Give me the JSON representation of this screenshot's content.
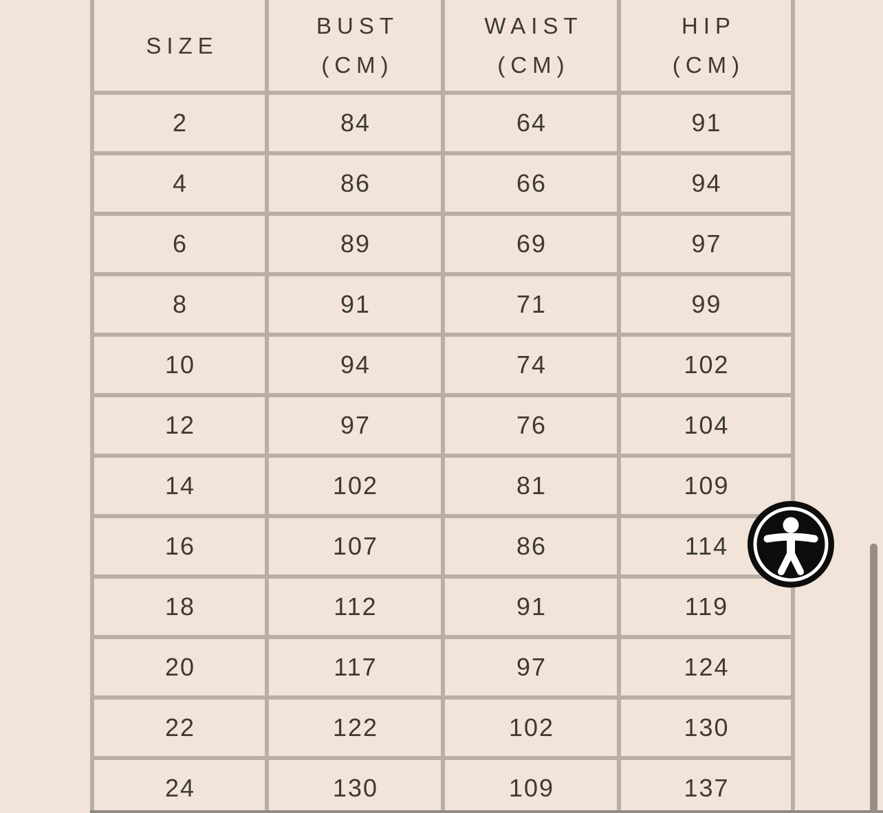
{
  "table": {
    "headers": [
      {
        "line1": "SIZE",
        "line2": ""
      },
      {
        "line1": "BUST",
        "line2": "(CM)"
      },
      {
        "line1": "WAIST",
        "line2": "(CM)"
      },
      {
        "line1": "HIP",
        "line2": "(CM)"
      }
    ],
    "rows": [
      [
        "2",
        "84",
        "64",
        "91"
      ],
      [
        "4",
        "86",
        "66",
        "94"
      ],
      [
        "6",
        "89",
        "69",
        "97"
      ],
      [
        "8",
        "91",
        "71",
        "99"
      ],
      [
        "10",
        "94",
        "74",
        "102"
      ],
      [
        "12",
        "97",
        "76",
        "104"
      ],
      [
        "14",
        "102",
        "81",
        "109"
      ],
      [
        "16",
        "107",
        "86",
        "114"
      ],
      [
        "18",
        "112",
        "91",
        "119"
      ],
      [
        "20",
        "117",
        "97",
        "124"
      ],
      [
        "22",
        "122",
        "102",
        "130"
      ],
      [
        "24",
        "130",
        "109",
        "137"
      ]
    ]
  },
  "icons": {
    "accessibility": "accessibility-person-icon"
  },
  "colors": {
    "background": "#f2e4d8",
    "border": "#b9afa4",
    "text": "#3d3934",
    "bottom_rule": "#8f8982",
    "scrollbar_thumb": "#958e86",
    "widget_background": "#0d0d0d",
    "widget_foreground": "#ffffff"
  }
}
